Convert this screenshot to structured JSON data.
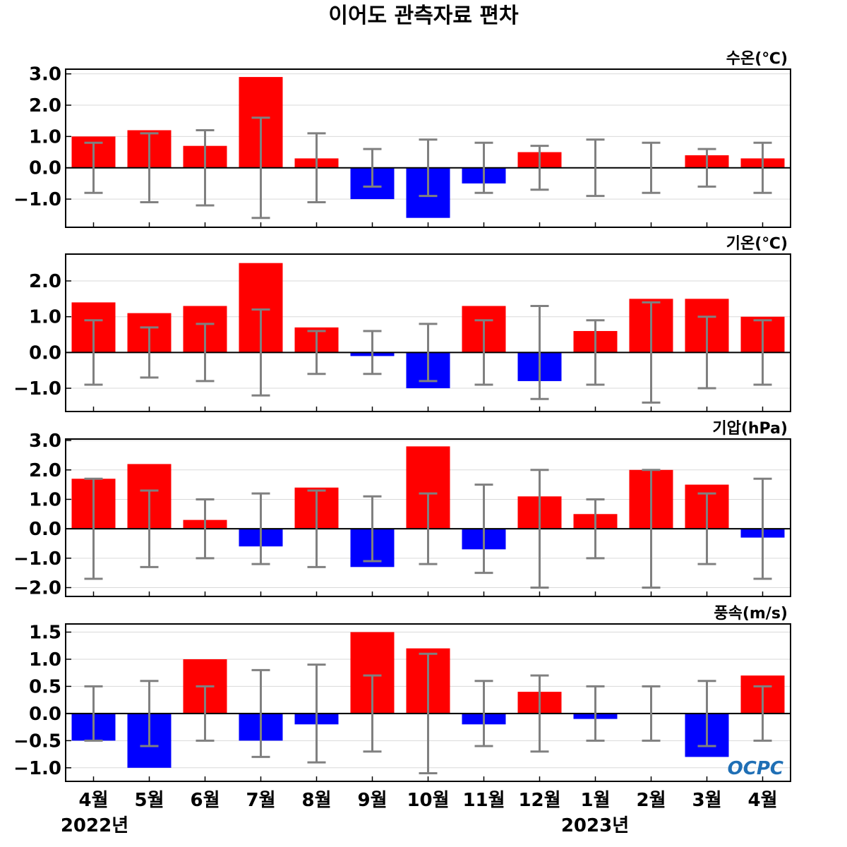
{
  "title": "이어도 관측자료 편차",
  "months": [
    "4월",
    "5월",
    "6월",
    "7월",
    "8월",
    "9월",
    "10월",
    "11월",
    "12월",
    "1월",
    "2월",
    "3월",
    "4월"
  ],
  "years": [
    "2022년",
    "2023년"
  ],
  "logo_text": "OCPC",
  "colors": {
    "positive": "#ff0000",
    "negative": "#0000ff",
    "error_bar": "#808080",
    "grid": "#d9d9d9",
    "zero_line": "#000000"
  },
  "chart_data": [
    {
      "type": "bar",
      "label": "수온(℃)",
      "categories": [
        "4월",
        "5월",
        "6월",
        "7월",
        "8월",
        "9월",
        "10월",
        "11월",
        "12월",
        "1월",
        "2월",
        "3월",
        "4월"
      ],
      "values": [
        1.0,
        1.2,
        0.7,
        2.9,
        0.3,
        -1.0,
        -1.6,
        -0.5,
        0.5,
        0.0,
        0.0,
        0.4,
        0.3
      ],
      "error": [
        0.8,
        1.1,
        1.2,
        1.6,
        1.1,
        0.6,
        0.9,
        0.8,
        0.7,
        0.9,
        0.8,
        0.6,
        0.8
      ],
      "ylim": [
        -1.9,
        3.15
      ],
      "yticks": [
        3.0,
        2.0,
        1.0,
        0.0,
        -1.0
      ],
      "ytick_labels": [
        "3.0",
        "2.0",
        "1.0",
        "0.0",
        "−1.0"
      ],
      "grid": true
    },
    {
      "type": "bar",
      "label": "기온(℃)",
      "categories": [
        "4월",
        "5월",
        "6월",
        "7월",
        "8월",
        "9월",
        "10월",
        "11월",
        "12월",
        "1월",
        "2월",
        "3월",
        "4월"
      ],
      "values": [
        1.4,
        1.1,
        1.3,
        2.5,
        0.7,
        -0.1,
        -1.0,
        1.3,
        -0.8,
        0.6,
        1.5,
        1.5,
        1.0
      ],
      "error": [
        0.9,
        0.7,
        0.8,
        1.2,
        0.6,
        0.6,
        0.8,
        0.9,
        1.3,
        0.9,
        1.4,
        1.0,
        0.9
      ],
      "ylim": [
        -1.65,
        2.75
      ],
      "yticks": [
        2.0,
        1.0,
        0.0,
        -1.0
      ],
      "ytick_labels": [
        "2.0",
        "1.0",
        "0.0",
        "−1.0"
      ],
      "grid": true
    },
    {
      "type": "bar",
      "label": "기압(hPa)",
      "categories": [
        "4월",
        "5월",
        "6월",
        "7월",
        "8월",
        "9월",
        "10월",
        "11월",
        "12월",
        "1월",
        "2월",
        "3월",
        "4월"
      ],
      "values": [
        1.7,
        2.2,
        0.3,
        -0.6,
        1.4,
        -1.3,
        2.8,
        -0.7,
        1.1,
        0.5,
        2.0,
        1.5,
        -0.3
      ],
      "error": [
        1.7,
        1.3,
        1.0,
        1.2,
        1.3,
        1.1,
        1.2,
        1.5,
        2.0,
        1.0,
        2.0,
        1.2,
        1.7
      ],
      "ylim": [
        -2.3,
        3.05
      ],
      "yticks": [
        3.0,
        2.0,
        1.0,
        0.0,
        -1.0,
        -2.0
      ],
      "ytick_labels": [
        "3.0",
        "2.0",
        "1.0",
        "0.0",
        "−1.0",
        "−2.0"
      ],
      "grid": true
    },
    {
      "type": "bar",
      "label": "풍속(m/s)",
      "categories": [
        "4월",
        "5월",
        "6월",
        "7월",
        "8월",
        "9월",
        "10월",
        "11월",
        "12월",
        "1월",
        "2월",
        "3월",
        "4월"
      ],
      "values": [
        -0.5,
        -1.0,
        1.0,
        -0.5,
        -0.2,
        1.5,
        1.2,
        -0.2,
        0.4,
        -0.1,
        0.0,
        -0.8,
        0.7
      ],
      "error": [
        0.5,
        0.6,
        0.5,
        0.8,
        0.9,
        0.7,
        1.1,
        0.6,
        0.7,
        0.5,
        0.5,
        0.6,
        0.5
      ],
      "ylim": [
        -1.25,
        1.65
      ],
      "yticks": [
        1.5,
        1.0,
        0.5,
        0.0,
        -0.5,
        -1.0
      ],
      "ytick_labels": [
        "1.5",
        "1.0",
        "0.5",
        "0.0",
        "−0.5",
        "−1.0"
      ],
      "grid": true
    }
  ]
}
